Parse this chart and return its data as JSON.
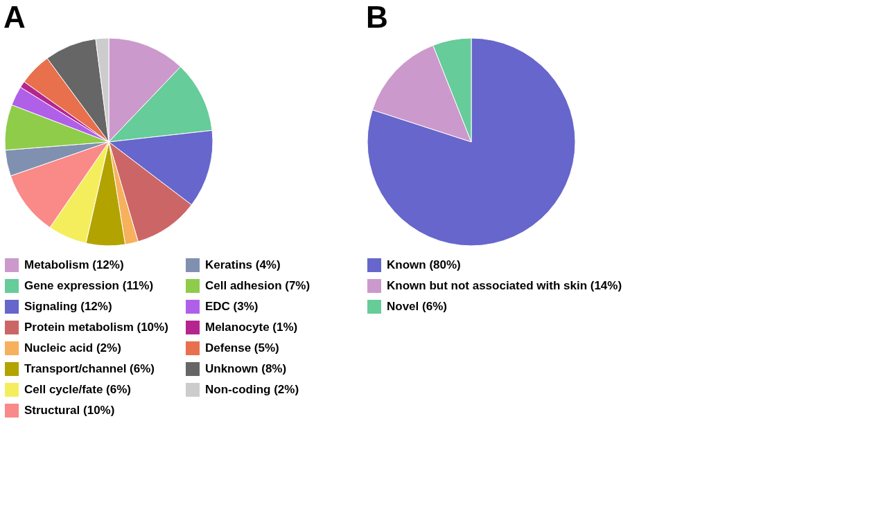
{
  "chart_data": [
    {
      "type": "pie",
      "title": "A",
      "legend": "bottom",
      "categories": [
        "Metabolism (12%)",
        "Gene expression (11%)",
        "Signaling (12%)",
        "Protein metabolism (10%)",
        "Nucleic acid (2%)",
        "Transport/channel (6%)",
        "Cell cycle/fate (6%)",
        "Structural (10%)",
        "Keratins (4%)",
        "Cell adhesion (7%)",
        "EDC (3%)",
        "Melanocyte (1%)",
        "Defense (5%)",
        "Unknown (8%)",
        "Non-coding (2%)"
      ],
      "values": [
        12,
        11,
        12,
        10,
        2,
        6,
        6,
        10,
        4,
        7,
        3,
        1,
        5,
        8,
        2
      ],
      "colors": [
        "#cc99cc",
        "#66cc99",
        "#6666cc",
        "#cc6666",
        "#f7b05b",
        "#b3a300",
        "#f5ee5c",
        "#f98a87",
        "#8090b0",
        "#8fcc4a",
        "#b060e8",
        "#b52590",
        "#e8704c",
        "#666666",
        "#cccccc"
      ]
    },
    {
      "type": "pie",
      "title": "B",
      "legend": "bottom",
      "categories": [
        "Known (80%)",
        "Known but not associated with skin (14%)",
        "Novel (6%)"
      ],
      "values": [
        80,
        14,
        6
      ],
      "colors": [
        "#6666cc",
        "#cc99cc",
        "#66cc99"
      ]
    }
  ]
}
